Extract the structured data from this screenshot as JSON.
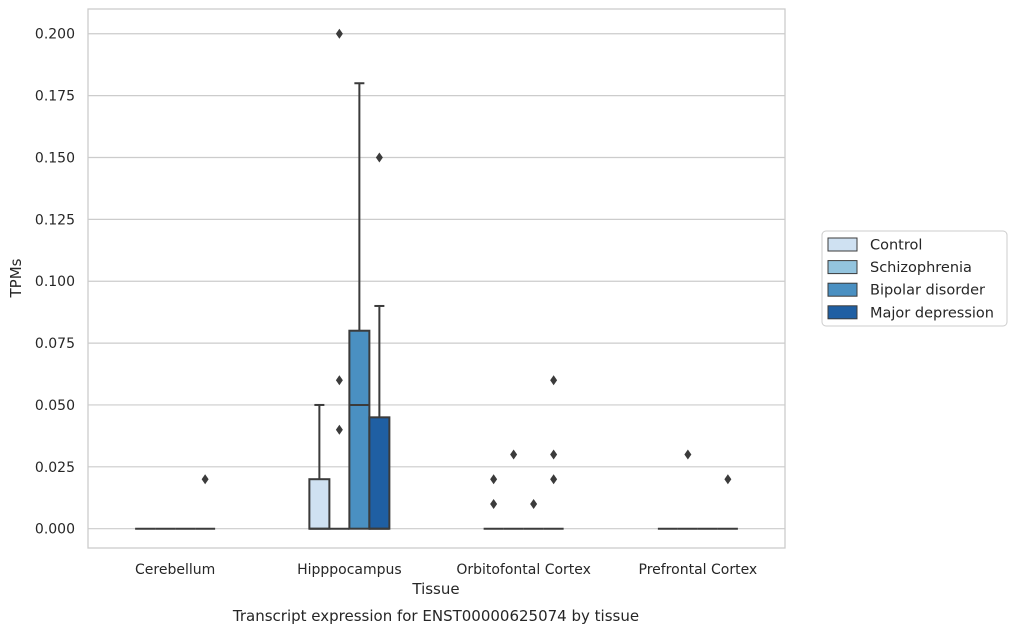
{
  "chart_data": {
    "type": "box",
    "title": "Transcript expression for ENST00000625074 by tissue",
    "xlabel": "Tissue",
    "ylabel": "TPMs",
    "ylim": [
      -0.0078,
      0.21
    ],
    "yticks": [
      "0.000",
      "0.025",
      "0.050",
      "0.075",
      "0.100",
      "0.125",
      "0.150",
      "0.175",
      "0.200"
    ],
    "grid": "horizontal",
    "legend_position": "right",
    "categories": [
      "Cerebellum",
      "Hipppocampus",
      "Orbitofontal Cortex",
      "Prefrontal Cortex"
    ],
    "series": [
      {
        "name": "Control",
        "color": "#cfe1f2",
        "boxes": [
          {
            "q1": 0,
            "median": 0,
            "q3": 0,
            "whisker_low": 0,
            "whisker_high": 0,
            "outliers": []
          },
          {
            "q1": 0,
            "median": 0,
            "q3": 0.02,
            "whisker_low": 0,
            "whisker_high": 0.05,
            "outliers": []
          },
          {
            "q1": 0,
            "median": 0,
            "q3": 0,
            "whisker_low": 0,
            "whisker_high": 0,
            "outliers": [
              0.02,
              0.01
            ]
          },
          {
            "q1": 0,
            "median": 0,
            "q3": 0,
            "whisker_low": 0,
            "whisker_high": 0,
            "outliers": []
          }
        ]
      },
      {
        "name": "Schizophrenia",
        "color": "#93c4de",
        "boxes": [
          {
            "q1": 0,
            "median": 0,
            "q3": 0,
            "whisker_low": 0,
            "whisker_high": 0,
            "outliers": []
          },
          {
            "q1": 0,
            "median": 0,
            "q3": 0,
            "whisker_low": 0,
            "whisker_high": 0,
            "outliers": [
              0.2,
              0.06,
              0.04
            ]
          },
          {
            "q1": 0,
            "median": 0,
            "q3": 0,
            "whisker_low": 0,
            "whisker_high": 0,
            "outliers": [
              0.03
            ]
          },
          {
            "q1": 0,
            "median": 0,
            "q3": 0,
            "whisker_low": 0,
            "whisker_high": 0,
            "outliers": [
              0.03
            ]
          }
        ]
      },
      {
        "name": "Bipolar disorder",
        "color": "#4a90c2",
        "boxes": [
          {
            "q1": 0,
            "median": 0,
            "q3": 0,
            "whisker_low": 0,
            "whisker_high": 0,
            "outliers": []
          },
          {
            "q1": 0,
            "median": 0.05,
            "q3": 0.08,
            "whisker_low": 0,
            "whisker_high": 0.18,
            "outliers": []
          },
          {
            "q1": 0,
            "median": 0,
            "q3": 0,
            "whisker_low": 0,
            "whisker_high": 0,
            "outliers": [
              0.01
            ]
          },
          {
            "q1": 0,
            "median": 0,
            "q3": 0,
            "whisker_low": 0,
            "whisker_high": 0,
            "outliers": []
          }
        ]
      },
      {
        "name": "Major depression",
        "color": "#1f5fa3",
        "boxes": [
          {
            "q1": 0,
            "median": 0,
            "q3": 0,
            "whisker_low": 0,
            "whisker_high": 0,
            "outliers": [
              0.02
            ]
          },
          {
            "q1": 0,
            "median": 0,
            "q3": 0.045,
            "whisker_low": 0,
            "whisker_high": 0.09,
            "outliers": [
              0.15
            ]
          },
          {
            "q1": 0,
            "median": 0,
            "q3": 0,
            "whisker_low": 0,
            "whisker_high": 0,
            "outliers": [
              0.06,
              0.03,
              0.02
            ]
          },
          {
            "q1": 0,
            "median": 0,
            "q3": 0,
            "whisker_low": 0,
            "whisker_high": 0,
            "outliers": [
              0.02
            ]
          }
        ]
      }
    ]
  }
}
